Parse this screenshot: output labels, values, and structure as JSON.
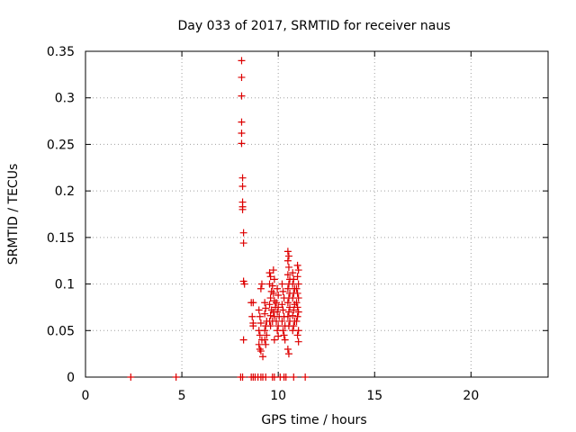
{
  "chart_data": {
    "type": "scatter",
    "title": "Day 033 of 2017, SRMTID for receiver naus",
    "xlabel": "GPS time / hours",
    "ylabel": "SRMTID / TECUs",
    "xlim": [
      0,
      24
    ],
    "ylim": [
      0,
      0.35
    ],
    "xticks": [
      0,
      5,
      10,
      15,
      20
    ],
    "xtick_labels": [
      "0",
      "5",
      "10",
      "15",
      "20"
    ],
    "yticks": [
      0,
      0.05,
      0.1,
      0.15,
      0.2,
      0.25,
      0.3,
      0.35
    ],
    "ytick_labels": [
      "0",
      "0.05",
      "0.1",
      "0.15",
      "0.2",
      "0.25",
      "0.3",
      "0.35"
    ],
    "grid": true,
    "marker": "plus",
    "color": "#dd0000",
    "series": [
      {
        "points": [
          [
            2.35,
            0
          ],
          [
            4.7,
            0
          ],
          [
            8.05,
            0
          ],
          [
            8.15,
            0
          ],
          [
            8.6,
            0
          ],
          [
            8.7,
            0
          ],
          [
            8.8,
            0
          ],
          [
            8.95,
            0
          ],
          [
            9.1,
            0
          ],
          [
            9.2,
            0
          ],
          [
            9.35,
            0
          ],
          [
            9.7,
            0
          ],
          [
            9.8,
            0
          ],
          [
            10.1,
            0
          ],
          [
            10.3,
            0
          ],
          [
            10.4,
            0
          ],
          [
            10.8,
            0
          ],
          [
            11.4,
            0
          ],
          [
            8.1,
            0.34
          ],
          [
            8.1,
            0.322
          ],
          [
            8.1,
            0.302
          ],
          [
            8.1,
            0.274
          ],
          [
            8.1,
            0.262
          ],
          [
            8.1,
            0.251
          ],
          [
            8.15,
            0.214
          ],
          [
            8.15,
            0.205
          ],
          [
            8.15,
            0.188
          ],
          [
            8.15,
            0.183
          ],
          [
            8.15,
            0.18
          ],
          [
            8.2,
            0.155
          ],
          [
            8.2,
            0.144
          ],
          [
            8.2,
            0.103
          ],
          [
            8.25,
            0.1
          ],
          [
            8.2,
            0.04
          ],
          [
            8.6,
            0.08
          ],
          [
            8.7,
            0.08
          ],
          [
            8.65,
            0.065
          ],
          [
            8.7,
            0.058
          ],
          [
            8.7,
            0.055
          ],
          [
            9.0,
            0.072
          ],
          [
            9.05,
            0.065
          ],
          [
            9.1,
            0.058
          ],
          [
            9.0,
            0.05
          ],
          [
            9.05,
            0.045
          ],
          [
            9.15,
            0.04
          ],
          [
            9.0,
            0.035
          ],
          [
            9.05,
            0.03
          ],
          [
            9.1,
            0.028
          ],
          [
            9.2,
            0.022
          ],
          [
            9.15,
            0.1
          ],
          [
            9.1,
            0.095
          ],
          [
            9.3,
            0.08
          ],
          [
            9.35,
            0.074
          ],
          [
            9.3,
            0.068
          ],
          [
            9.4,
            0.06
          ],
          [
            9.35,
            0.055
          ],
          [
            9.3,
            0.05
          ],
          [
            9.4,
            0.045
          ],
          [
            9.3,
            0.04
          ],
          [
            9.35,
            0.035
          ],
          [
            9.55,
            0.112
          ],
          [
            9.6,
            0.108
          ],
          [
            9.55,
            0.1
          ],
          [
            9.65,
            0.092
          ],
          [
            9.6,
            0.085
          ],
          [
            9.55,
            0.078
          ],
          [
            9.65,
            0.072
          ],
          [
            9.6,
            0.066
          ],
          [
            9.55,
            0.06
          ],
          [
            9.6,
            0.055
          ],
          [
            9.75,
            0.115
          ],
          [
            9.8,
            0.105
          ],
          [
            9.7,
            0.098
          ],
          [
            9.75,
            0.09
          ],
          [
            9.8,
            0.082
          ],
          [
            9.85,
            0.075
          ],
          [
            9.75,
            0.07
          ],
          [
            9.8,
            0.065
          ],
          [
            9.7,
            0.06
          ],
          [
            9.8,
            0.04
          ],
          [
            9.95,
            0.095
          ],
          [
            10.0,
            0.088
          ],
          [
            9.9,
            0.08
          ],
          [
            10.0,
            0.075
          ],
          [
            9.95,
            0.07
          ],
          [
            10.05,
            0.065
          ],
          [
            9.9,
            0.06
          ],
          [
            10.0,
            0.055
          ],
          [
            9.95,
            0.05
          ],
          [
            10.0,
            0.044
          ],
          [
            10.2,
            0.1
          ],
          [
            10.25,
            0.092
          ],
          [
            10.3,
            0.085
          ],
          [
            10.2,
            0.078
          ],
          [
            10.25,
            0.072
          ],
          [
            10.3,
            0.065
          ],
          [
            10.2,
            0.06
          ],
          [
            10.35,
            0.055
          ],
          [
            10.25,
            0.05
          ],
          [
            10.3,
            0.045
          ],
          [
            10.35,
            0.04
          ],
          [
            10.5,
            0.135
          ],
          [
            10.55,
            0.13
          ],
          [
            10.5,
            0.125
          ],
          [
            10.55,
            0.118
          ],
          [
            10.5,
            0.11
          ],
          [
            10.6,
            0.105
          ],
          [
            10.55,
            0.1
          ],
          [
            10.5,
            0.095
          ],
          [
            10.6,
            0.09
          ],
          [
            10.55,
            0.085
          ],
          [
            10.5,
            0.08
          ],
          [
            10.6,
            0.075
          ],
          [
            10.55,
            0.07
          ],
          [
            10.5,
            0.065
          ],
          [
            10.6,
            0.06
          ],
          [
            10.55,
            0.055
          ],
          [
            10.5,
            0.03
          ],
          [
            10.55,
            0.025
          ],
          [
            10.75,
            0.112
          ],
          [
            10.8,
            0.105
          ],
          [
            10.75,
            0.1
          ],
          [
            10.85,
            0.095
          ],
          [
            10.8,
            0.09
          ],
          [
            10.75,
            0.085
          ],
          [
            10.85,
            0.078
          ],
          [
            10.8,
            0.072
          ],
          [
            10.75,
            0.066
          ],
          [
            10.85,
            0.06
          ],
          [
            10.8,
            0.055
          ],
          [
            10.75,
            0.05
          ],
          [
            11.0,
            0.12
          ],
          [
            11.05,
            0.115
          ],
          [
            11.0,
            0.108
          ],
          [
            11.05,
            0.1
          ],
          [
            10.95,
            0.095
          ],
          [
            11.0,
            0.09
          ],
          [
            11.05,
            0.085
          ],
          [
            10.95,
            0.08
          ],
          [
            11.0,
            0.075
          ],
          [
            11.05,
            0.07
          ],
          [
            11.0,
            0.065
          ],
          [
            10.95,
            0.06
          ],
          [
            11.05,
            0.05
          ],
          [
            11.0,
            0.045
          ],
          [
            11.05,
            0.038
          ]
        ]
      }
    ]
  }
}
